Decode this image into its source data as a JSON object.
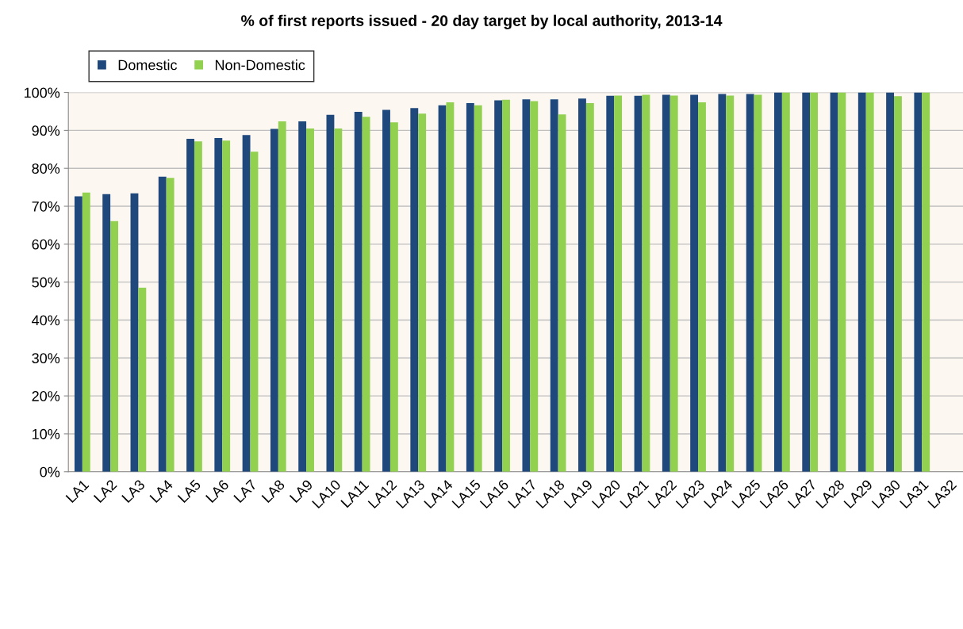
{
  "chart_data": {
    "type": "bar",
    "title": "% of first reports issued - 20 day target by local authority, 2013-14",
    "categories": [
      "LA1",
      "LA2",
      "LA3",
      "LA4",
      "LA5",
      "LA6",
      "LA7",
      "LA8",
      "LA9",
      "LA10",
      "LA11",
      "LA12",
      "LA13",
      "LA14",
      "LA15",
      "LA16",
      "LA17",
      "LA18",
      "LA19",
      "LA20",
      "LA21",
      "LA22",
      "LA23",
      "LA24",
      "LA25",
      "LA26",
      "LA27",
      "LA28",
      "LA29",
      "LA30",
      "LA31",
      "LA32"
    ],
    "series": [
      {
        "name": "Domestic",
        "color": "#1f497d",
        "values": [
          72.6,
          73.2,
          73.4,
          77.8,
          87.8,
          88.0,
          88.8,
          90.4,
          92.4,
          94.1,
          94.9,
          95.4,
          95.9,
          96.6,
          97.2,
          97.9,
          98.2,
          98.2,
          98.4,
          99.1,
          99.1,
          99.4,
          99.4,
          99.6,
          99.6,
          100,
          100,
          100,
          100,
          100,
          100,
          null
        ]
      },
      {
        "name": "Non-Domestic",
        "color": "#92d050",
        "values": [
          73.6,
          66.1,
          48.5,
          77.5,
          87.1,
          87.3,
          84.4,
          92.4,
          90.5,
          90.5,
          93.6,
          92.1,
          94.4,
          97.4,
          96.6,
          98.1,
          97.7,
          94.2,
          97.2,
          99.2,
          99.4,
          99.2,
          97.4,
          99.2,
          99.4,
          100,
          100,
          100,
          100,
          99.0,
          100,
          null
        ]
      }
    ],
    "ylim": [
      0,
      100
    ],
    "yticks": [
      {
        "value": 0,
        "label": "0%"
      },
      {
        "value": 10,
        "label": "10%"
      },
      {
        "value": 20,
        "label": "20%"
      },
      {
        "value": 30,
        "label": "30%"
      },
      {
        "value": 40,
        "label": "40%"
      },
      {
        "value": 50,
        "label": "50%"
      },
      {
        "value": 60,
        "label": "60%"
      },
      {
        "value": 70,
        "label": "70%"
      },
      {
        "value": 80,
        "label": "80%"
      },
      {
        "value": 90,
        "label": "90%"
      },
      {
        "value": 100,
        "label": "100%"
      }
    ],
    "grid": "y",
    "legend": "top left"
  }
}
